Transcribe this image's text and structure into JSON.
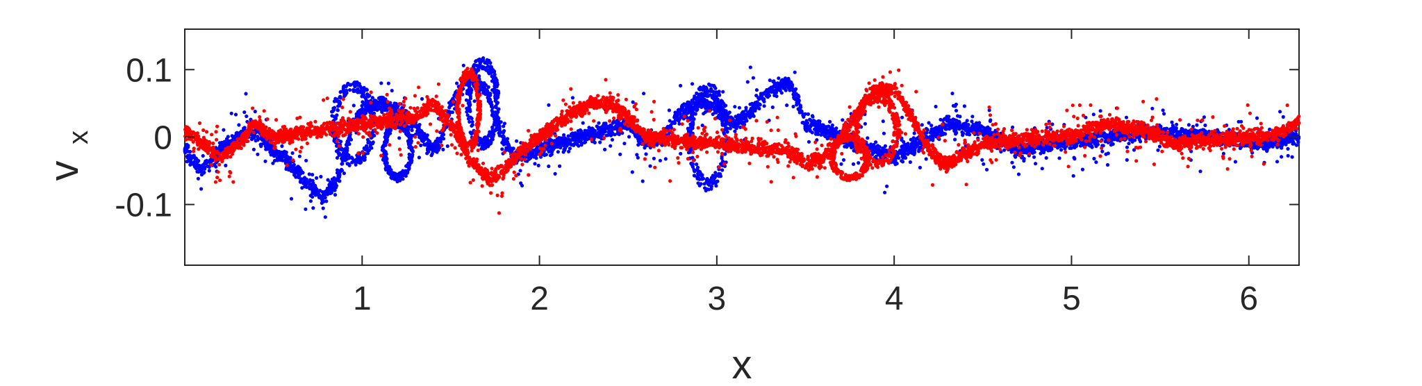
{
  "chart_data": {
    "type": "scatter",
    "xlabel": "x",
    "ylabel": "v",
    "ylabel_subscript": "x",
    "xlim": [
      0,
      6.283
    ],
    "ylim": [
      -0.19,
      0.16
    ],
    "xticks": [
      1,
      2,
      3,
      4,
      5,
      6
    ],
    "xtick_labels": [
      "1",
      "2",
      "3",
      "4",
      "5",
      "6"
    ],
    "yticks": [
      0.1,
      0,
      -0.1
    ],
    "ytick_labels": [
      "0.1",
      "0",
      "-0.1"
    ],
    "grid": false,
    "box": true,
    "series": [
      {
        "color": "#0000ff",
        "path": [
          [
            0.0,
            -0.02
          ],
          [
            0.1,
            -0.05
          ],
          [
            0.2,
            -0.02
          ],
          [
            0.3,
            0.0
          ],
          [
            0.4,
            0.01
          ],
          [
            0.5,
            -0.02
          ],
          [
            0.6,
            -0.04
          ],
          [
            0.7,
            -0.07
          ],
          [
            0.78,
            -0.09
          ],
          [
            0.85,
            -0.07
          ],
          [
            0.9,
            -0.03
          ],
          [
            0.95,
            0.02
          ],
          [
            1.0,
            0.04
          ],
          [
            1.1,
            0.05
          ],
          [
            1.2,
            0.04
          ],
          [
            1.3,
            0.02
          ],
          [
            1.35,
            0.0
          ],
          [
            1.4,
            -0.02
          ],
          [
            1.45,
            0.0
          ],
          [
            1.5,
            0.05
          ],
          [
            1.6,
            0.09
          ],
          [
            1.7,
            0.07
          ],
          [
            1.75,
            0.03
          ],
          [
            1.8,
            0.0
          ],
          [
            1.85,
            -0.03
          ],
          [
            2.5,
            0.02
          ],
          [
            2.6,
            -0.01
          ],
          [
            2.7,
            0.0
          ],
          [
            2.8,
            0.04
          ],
          [
            2.9,
            0.05
          ],
          [
            3.0,
            0.04
          ],
          [
            3.1,
            0.02
          ],
          [
            3.2,
            0.04
          ],
          [
            3.3,
            0.07
          ],
          [
            3.4,
            0.08
          ],
          [
            3.45,
            0.06
          ],
          [
            3.5,
            0.02
          ],
          [
            4.0,
            -0.03
          ],
          [
            4.2,
            0.0
          ],
          [
            4.3,
            0.02
          ],
          [
            4.5,
            0.01
          ],
          [
            4.7,
            -0.02
          ],
          [
            4.9,
            -0.01
          ],
          [
            5.2,
            0.0
          ],
          [
            5.5,
            0.01
          ],
          [
            5.8,
            0.0
          ],
          [
            6.1,
            -0.01
          ],
          [
            6.283,
            0.0
          ]
        ],
        "loops": [
          [
            0.95,
            0.02,
            0.22,
            0.055
          ],
          [
            1.68,
            0.05,
            0.16,
            0.06
          ],
          [
            2.95,
            0.0,
            0.2,
            0.07
          ],
          [
            1.2,
            -0.02,
            0.15,
            0.04
          ]
        ]
      },
      {
        "color": "#ff0000",
        "path": [
          [
            0.0,
            0.01
          ],
          [
            0.1,
            -0.01
          ],
          [
            0.2,
            -0.03
          ],
          [
            0.3,
            -0.01
          ],
          [
            0.4,
            0.02
          ],
          [
            0.5,
            0.0
          ],
          [
            1.3,
            0.03
          ],
          [
            1.4,
            0.05
          ],
          [
            1.5,
            0.02
          ],
          [
            1.6,
            -0.03
          ],
          [
            1.7,
            -0.06
          ],
          [
            1.8,
            -0.05
          ],
          [
            1.9,
            -0.02
          ],
          [
            2.0,
            0.0
          ],
          [
            2.1,
            0.02
          ],
          [
            2.2,
            0.04
          ],
          [
            2.3,
            0.05
          ],
          [
            2.4,
            0.05
          ],
          [
            2.5,
            0.03
          ],
          [
            2.6,
            0.0
          ],
          [
            3.4,
            -0.02
          ],
          [
            3.5,
            -0.04
          ],
          [
            3.6,
            -0.03
          ],
          [
            3.7,
            0.0
          ],
          [
            3.8,
            0.04
          ],
          [
            3.9,
            0.07
          ],
          [
            4.0,
            0.07
          ],
          [
            4.1,
            0.03
          ],
          [
            4.2,
            -0.02
          ],
          [
            4.3,
            -0.04
          ],
          [
            4.5,
            -0.01
          ],
          [
            4.8,
            0.0
          ],
          [
            5.0,
            0.0
          ],
          [
            5.2,
            0.02
          ],
          [
            5.4,
            0.01
          ],
          [
            5.6,
            -0.01
          ],
          [
            5.9,
            0.0
          ],
          [
            6.1,
            0.0
          ],
          [
            6.283,
            0.02
          ]
        ],
        "loops": [
          [
            3.9,
            0.01,
            0.23,
            0.05
          ],
          [
            3.75,
            -0.03,
            0.2,
            0.03
          ],
          [
            1.6,
            0.04,
            0.12,
            0.055
          ]
        ]
      }
    ]
  }
}
